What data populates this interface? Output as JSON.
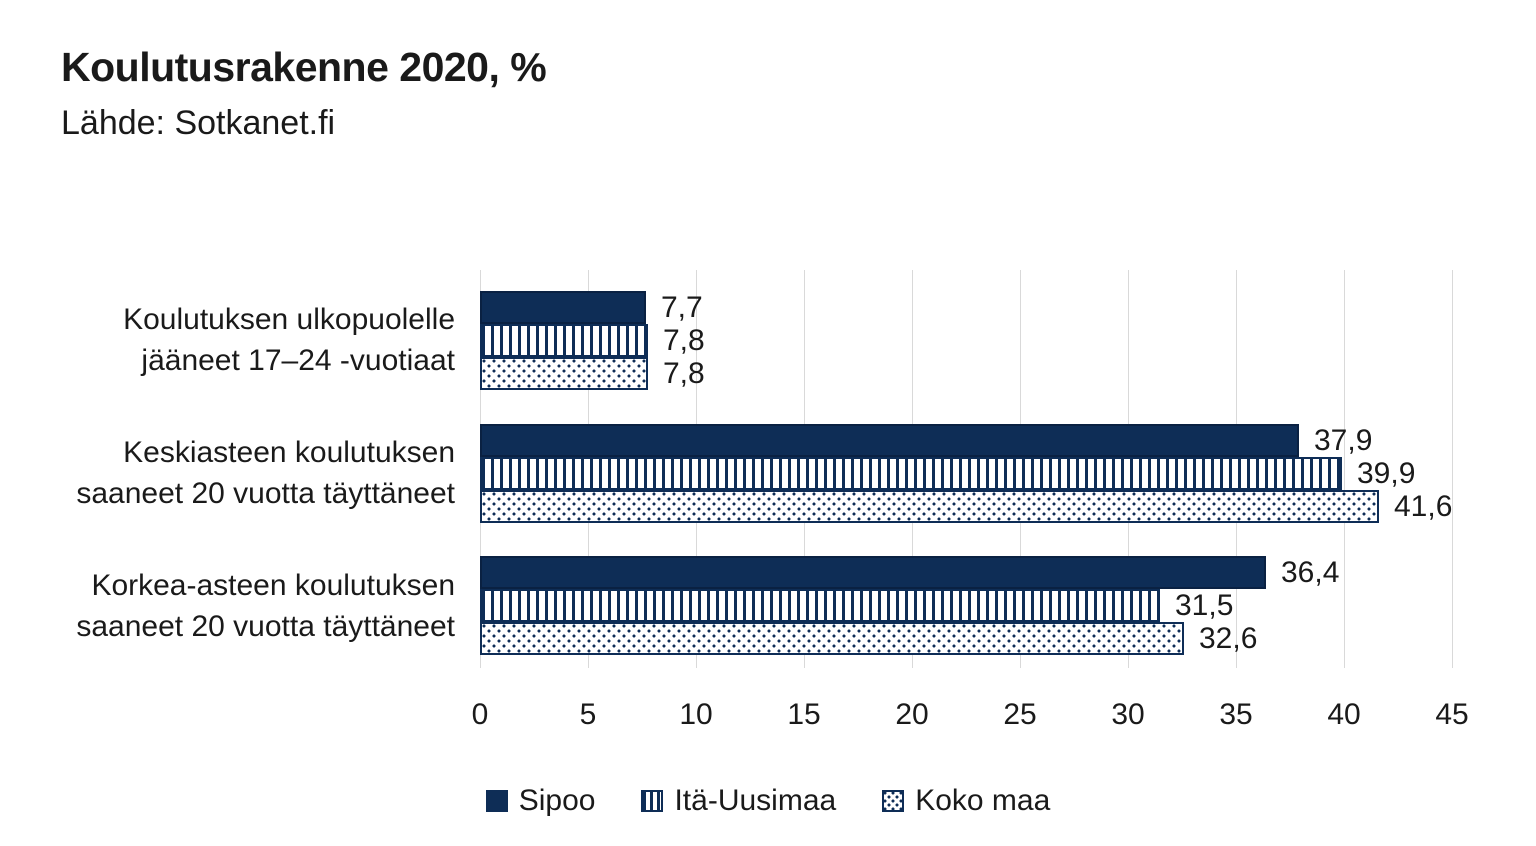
{
  "chart_data": {
    "type": "bar",
    "orientation": "horizontal",
    "title": "Koulutusrakenne 2020, %",
    "subtitle": "Lähde: Sotkanet.fi",
    "categories": [
      "Koulutuksen ulkopuolelle\njääneet 17–24 -vuotiaat",
      "Keskiasteen koulutuksen\nsaaneet 20 vuotta täyttäneet",
      "Korkea-asteen koulutuksen\nsaaneet 20 vuotta täyttäneet"
    ],
    "series": [
      {
        "name": "Sipoo",
        "pattern": "solid",
        "values": [
          7.7,
          37.9,
          36.4
        ],
        "labels": [
          "7,7",
          "37,9",
          "36,4"
        ]
      },
      {
        "name": "Itä-Uusimaa",
        "pattern": "vertical-stripes",
        "values": [
          7.8,
          39.9,
          31.5
        ],
        "labels": [
          "7,8",
          "39,9",
          "31,5"
        ]
      },
      {
        "name": "Koko maa",
        "pattern": "dots",
        "values": [
          7.8,
          41.6,
          32.6
        ],
        "labels": [
          "7,8",
          "41,6",
          "32,6"
        ]
      }
    ],
    "xlim": [
      0,
      45
    ],
    "xticks": [
      "0",
      "5",
      "10",
      "15",
      "20",
      "25",
      "30",
      "35",
      "40",
      "45"
    ],
    "grid": "vertical",
    "legend_position": "bottom",
    "colors": {
      "bar_navy": "#0e2d56",
      "gridline": "#d9d9d9",
      "text": "#1a1a1a",
      "background": "#ffffff"
    }
  }
}
